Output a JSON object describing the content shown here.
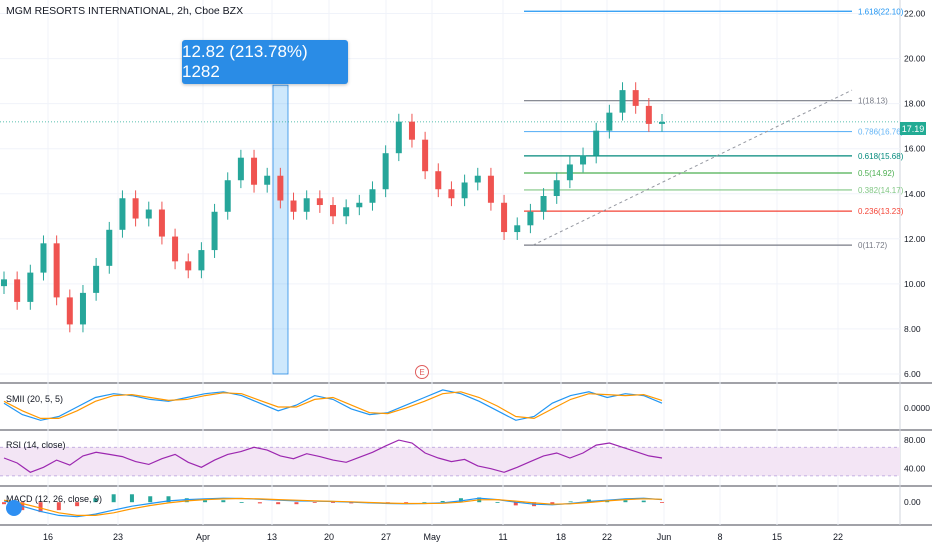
{
  "header": {
    "title": "MGM RESORTS INTERNATIONAL, 2h, Cboe BZX"
  },
  "measure_box": {
    "label": "12.82 (213.78%) 1282"
  },
  "current_price_label": "17.19",
  "earnings_marker": "E",
  "colors": {
    "up": "#26a69a",
    "down": "#ef5350",
    "macd": "#2196f3",
    "signal": "#ff9800",
    "rsi": "#9c27b0",
    "rsi_band": "#f3e5f5",
    "measure": "#2a8ce6"
  },
  "icons": {
    "logo": "tradingview-logo-icon"
  },
  "chart_data": [
    {
      "type": "candlestick",
      "title": "MGM RESORTS INTERNATIONAL, 2h, Cboe BZX",
      "y_ticks": [
        "22.00",
        "20.00",
        "18.00",
        "16.00",
        "14.00",
        "12.00",
        "10.00",
        "8.00",
        "6.00"
      ],
      "ylim": [
        5.6,
        22.6
      ],
      "x_ticks": [
        "16",
        "23",
        "Apr",
        "13",
        "20",
        "27",
        "May",
        "11",
        "18",
        "22",
        "Jun",
        "8",
        "15",
        "22"
      ],
      "close_series": [
        10.2,
        9.2,
        10.5,
        11.8,
        9.4,
        8.2,
        9.6,
        10.8,
        12.4,
        13.8,
        12.9,
        13.3,
        12.1,
        11.0,
        10.6,
        11.5,
        13.2,
        14.6,
        15.6,
        14.4,
        14.8,
        13.7,
        13.2,
        13.8,
        13.5,
        13.0,
        13.4,
        13.6,
        14.2,
        15.8,
        17.2,
        16.4,
        15.0,
        14.2,
        13.8,
        14.5,
        14.8,
        13.6,
        12.3,
        12.6,
        13.2,
        13.9,
        14.6,
        15.3,
        15.7,
        16.8,
        17.6,
        18.6,
        17.9,
        17.1,
        17.19
      ],
      "fibonacci": [
        {
          "label": "1.618(22.10)",
          "value": 22.1
        },
        {
          "label": "1(18.13)",
          "value": 18.13
        },
        {
          "label": "0.786(16.76)",
          "value": 16.76
        },
        {
          "label": "0.618(15.68)",
          "value": 15.68
        },
        {
          "label": "0.5(14.92)",
          "value": 14.92
        },
        {
          "label": "0.382(14.17)",
          "value": 14.17
        },
        {
          "label": "0.236(13.23)",
          "value": 13.23
        },
        {
          "label": "0(11.72)",
          "value": 11.72
        }
      ],
      "measure_range": {
        "low": 6.0,
        "high": 18.82
      },
      "last_price": 17.19
    },
    {
      "type": "line",
      "title": "SMII (20, 5, 5)",
      "y_ticks": [
        "0.0000"
      ],
      "ylim": [
        -1,
        1
      ],
      "series": [
        {
          "values": [
            0.2,
            -0.4,
            -0.7,
            -0.5,
            0.0,
            0.5,
            0.7,
            0.6,
            0.4,
            0.3,
            0.5,
            0.7,
            0.8,
            0.6,
            0.2,
            -0.2,
            0.1,
            0.6,
            0.4,
            -0.1,
            -0.4,
            -0.3,
            0.1,
            0.5,
            0.9,
            0.7,
            0.3,
            -0.2,
            -0.7,
            -0.5,
            0.2,
            0.6,
            0.8,
            0.5,
            0.7,
            0.6,
            0.2
          ]
        },
        {
          "values": [
            0.3,
            -0.2,
            -0.6,
            -0.6,
            -0.2,
            0.3,
            0.6,
            0.65,
            0.5,
            0.35,
            0.4,
            0.6,
            0.75,
            0.7,
            0.35,
            0.0,
            0.0,
            0.4,
            0.5,
            0.1,
            -0.3,
            -0.35,
            -0.05,
            0.3,
            0.7,
            0.8,
            0.5,
            0.05,
            -0.5,
            -0.6,
            -0.1,
            0.4,
            0.7,
            0.65,
            0.6,
            0.65,
            0.35
          ]
        }
      ]
    },
    {
      "type": "line",
      "title": "RSI (14, close)",
      "y_ticks": [
        "80.00",
        "40.00"
      ],
      "ylim": [
        20,
        90
      ],
      "series": [
        {
          "values": [
            55,
            48,
            35,
            42,
            52,
            45,
            58,
            63,
            60,
            57,
            50,
            46,
            54,
            60,
            49,
            42,
            52,
            60,
            64,
            70,
            66,
            58,
            54,
            61,
            57,
            52,
            49,
            56,
            63,
            72,
            80,
            76,
            62,
            55,
            50,
            53,
            44,
            40,
            35,
            42,
            50,
            58,
            62,
            55,
            62,
            73,
            76,
            70,
            64,
            58,
            55
          ]
        }
      ]
    },
    {
      "type": "line",
      "title": "MACD (12, 26, close, 9)",
      "y_ticks": [
        "0.00"
      ],
      "ylim": [
        -1.5,
        1
      ],
      "series": [
        {
          "values": [
            0.1,
            -0.3,
            -0.7,
            -1.0,
            -1.1,
            -0.9,
            -0.6,
            -0.3,
            -0.1,
            0.1,
            0.2,
            0.25,
            0.3,
            0.28,
            0.22,
            0.15,
            0.1,
            0.08,
            0.05,
            0.0,
            -0.05,
            -0.1,
            -0.12,
            -0.1,
            -0.05,
            0.1,
            0.3,
            0.2,
            0.0,
            -0.15,
            -0.2,
            -0.1,
            0.05,
            0.15,
            0.25,
            0.3,
            0.2
          ]
        },
        {
          "values": [
            0.15,
            -0.1,
            -0.45,
            -0.8,
            -1.0,
            -1.0,
            -0.8,
            -0.5,
            -0.25,
            -0.05,
            0.1,
            0.2,
            0.25,
            0.28,
            0.25,
            0.2,
            0.15,
            0.1,
            0.07,
            0.03,
            -0.02,
            -0.07,
            -0.1,
            -0.1,
            -0.08,
            0.0,
            0.18,
            0.2,
            0.08,
            -0.05,
            -0.15,
            -0.12,
            -0.02,
            0.1,
            0.2,
            0.26,
            0.22
          ]
        }
      ]
    }
  ]
}
